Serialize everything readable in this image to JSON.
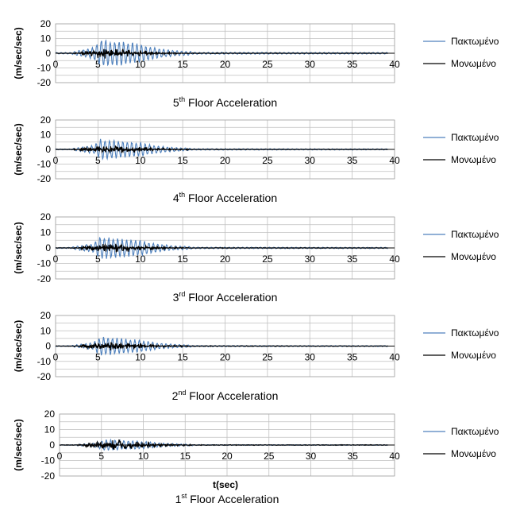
{
  "chart_data": [
    {
      "type": "line",
      "title": "Floor Acceleration",
      "title_ordinal": "5",
      "title_suffix": "th",
      "ylabel": "(m/sec/sec)",
      "xlabel": "",
      "xlim": [
        0,
        40
      ],
      "ylim": [
        -20,
        20
      ],
      "x_ticks": [
        "0",
        "5",
        "10",
        "15",
        "20",
        "25",
        "30",
        "35",
        "40"
      ],
      "y_ticks": [
        "20",
        "10",
        "0",
        "-10",
        "-20"
      ],
      "grid": true,
      "legend_position": "right",
      "series": [
        {
          "name": "Πακτωμένο",
          "color": "#4f81bd",
          "peak": 10.5
        },
        {
          "name": "Μονωμένο",
          "color": "#000000",
          "peak": 3.2
        }
      ]
    },
    {
      "type": "line",
      "title": "Floor Acceleration",
      "title_ordinal": "4",
      "title_suffix": "th",
      "ylabel": "(m/sec/sec)",
      "xlabel": "",
      "xlim": [
        0,
        40
      ],
      "ylim": [
        -20,
        20
      ],
      "x_ticks": [
        "0",
        "5",
        "10",
        "15",
        "20",
        "25",
        "30",
        "35",
        "40"
      ],
      "y_ticks": [
        "20",
        "10",
        "0",
        "-10",
        "-20"
      ],
      "grid": true,
      "legend_position": "right",
      "series": [
        {
          "name": "Πακτωμένο",
          "color": "#4f81bd",
          "peak": 7.5
        },
        {
          "name": "Μονωμένο",
          "color": "#000000",
          "peak": 3.0
        }
      ]
    },
    {
      "type": "line",
      "title": "Floor Acceleration",
      "title_ordinal": "3",
      "title_suffix": "rd",
      "ylabel": "(m/sec/sec)",
      "xlabel": "",
      "xlim": [
        0,
        40
      ],
      "ylim": [
        -20,
        20
      ],
      "x_ticks": [
        "0",
        "5",
        "10",
        "15",
        "20",
        "25",
        "30",
        "35",
        "40"
      ],
      "y_ticks": [
        "20",
        "10",
        "0",
        "-10",
        "-20"
      ],
      "grid": true,
      "legend_position": "right",
      "series": [
        {
          "name": "Πακτωμένο",
          "color": "#4f81bd",
          "peak": 8.0
        },
        {
          "name": "Μονωμένο",
          "color": "#000000",
          "peak": 3.0
        }
      ]
    },
    {
      "type": "line",
      "title": "Floor Acceleration",
      "title_ordinal": "2",
      "title_suffix": "nd",
      "ylabel": "(m/sec/sec)",
      "xlabel": "",
      "xlim": [
        0,
        40
      ],
      "ylim": [
        -20,
        20
      ],
      "x_ticks": [
        "0",
        "5",
        "10",
        "15",
        "20",
        "25",
        "30",
        "35",
        "40"
      ],
      "y_ticks": [
        "20",
        "10",
        "0",
        "-10",
        "-20"
      ],
      "grid": true,
      "legend_position": "right",
      "series": [
        {
          "name": "Πακτωμένο",
          "color": "#4f81bd",
          "peak": 6.5
        },
        {
          "name": "Μονωμένο",
          "color": "#000000",
          "peak": 3.0
        }
      ]
    },
    {
      "type": "line",
      "title": "Floor Acceleration",
      "title_ordinal": "1",
      "title_suffix": "st",
      "ylabel": "(m/sec/sec)",
      "xlabel": "t(sec)",
      "xlim": [
        0,
        40
      ],
      "ylim": [
        -20,
        20
      ],
      "x_ticks": [
        "0",
        "5",
        "10",
        "15",
        "20",
        "25",
        "30",
        "35",
        "40"
      ],
      "y_ticks": [
        "20",
        "10",
        "0",
        "-10",
        "-20"
      ],
      "grid": true,
      "legend_position": "right",
      "series": [
        {
          "name": "Πακτωμένο",
          "color": "#4f81bd",
          "peak": 4.0
        },
        {
          "name": "Μονωμένο",
          "color": "#000000",
          "peak": 3.5
        }
      ]
    }
  ]
}
